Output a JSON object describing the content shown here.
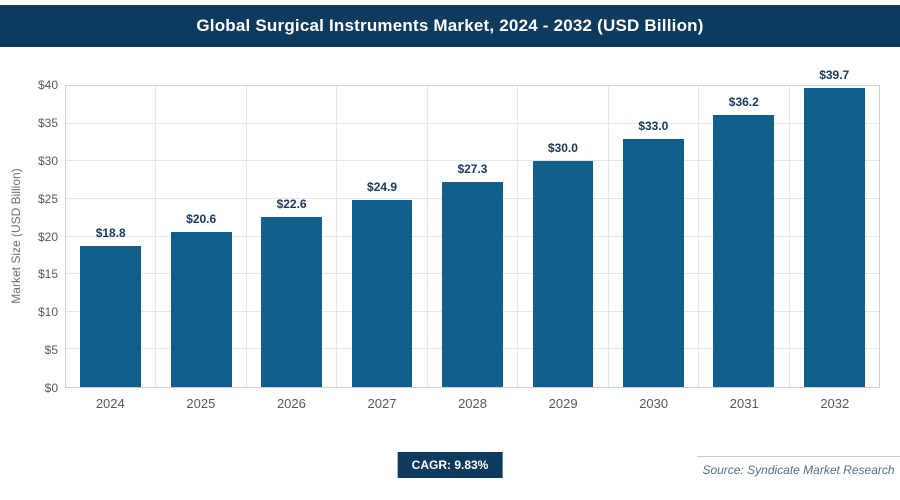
{
  "header": {
    "title": "Global Surgical Instruments Market, 2024 - 2032 (USD Billion)"
  },
  "chart_data": {
    "type": "bar",
    "title": "Global Surgical Instruments Market, 2024 - 2032 (USD Billion)",
    "categories": [
      "2024",
      "2025",
      "2026",
      "2027",
      "2028",
      "2029",
      "2030",
      "2031",
      "2032"
    ],
    "values": [
      18.8,
      20.6,
      22.6,
      24.9,
      27.3,
      30.0,
      33.0,
      36.2,
      39.7
    ],
    "labels": [
      "$18.8",
      "$20.6",
      "$22.6",
      "$24.9",
      "$27.3",
      "$30.0",
      "$33.0",
      "$36.2",
      "$39.7"
    ],
    "xlabel": "",
    "ylabel": "Market Size (USD Billion)",
    "ylim": [
      0,
      40
    ],
    "ytick_step": 5,
    "ytick_labels": [
      "$0",
      "$5",
      "$10",
      "$15",
      "$20",
      "$25",
      "$30",
      "$35",
      "$40"
    ],
    "grid": true,
    "legend": "none",
    "bar_color": "#135f8c"
  },
  "footer": {
    "cagr_label": "CAGR: 9.83%",
    "source": "Source: Syndicate Market Research"
  },
  "colors": {
    "header_bg": "#0e3a5e",
    "badge_bg": "#0e3a5e",
    "bar": "#135f8c",
    "gridline": "#e6e6e6"
  }
}
